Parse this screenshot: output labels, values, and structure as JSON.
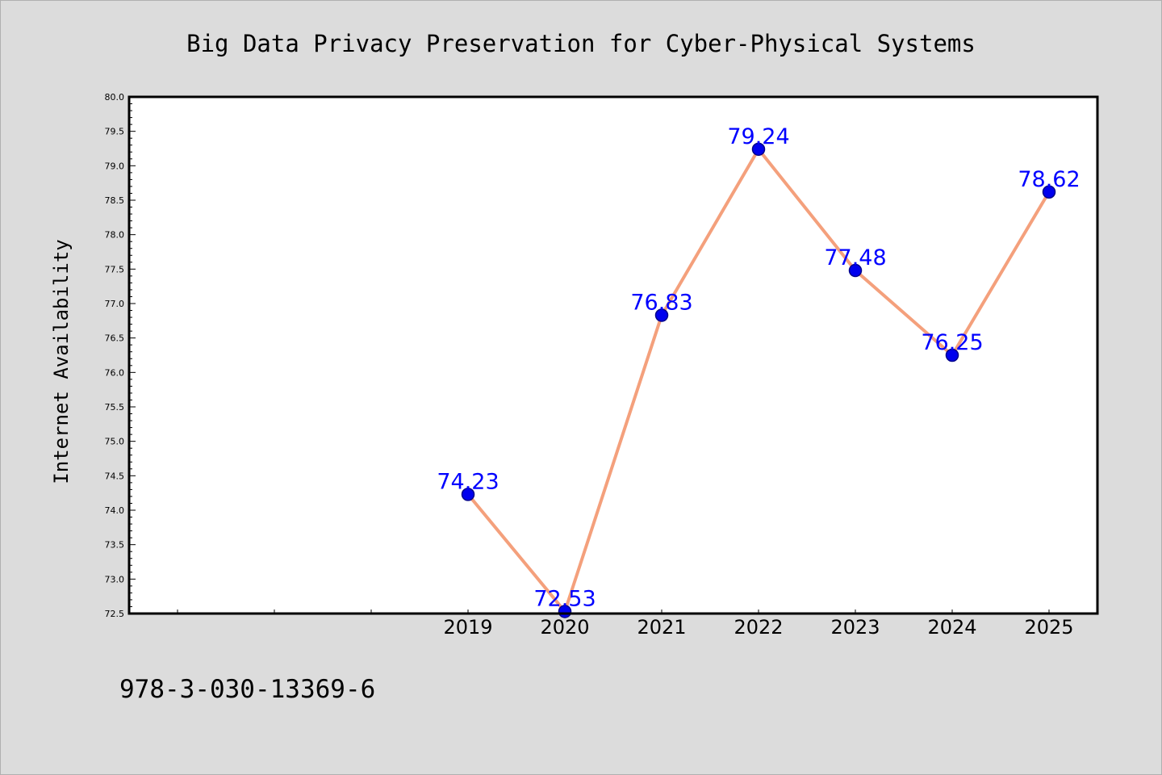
{
  "colors": {
    "background": "#dcdcdc",
    "plot_background": "#ffffff",
    "line": "#f4a07c",
    "marker_fill": "#0000ee",
    "marker_edge": "#00008b",
    "label": "#0000ff"
  },
  "chart_data": {
    "type": "line",
    "title": "Big Data Privacy Preservation for Cyber-Physical Systems",
    "xlabel": "",
    "ylabel": "Internet Availability",
    "categories": [
      "2019",
      "2020",
      "2021",
      "2022",
      "2023",
      "2024",
      "2025"
    ],
    "x_axis_slots": 10,
    "first_category_slot": 3,
    "series": [
      {
        "values": [
          74.23,
          72.53,
          76.83,
          79.24,
          77.48,
          76.25,
          78.62
        ],
        "labels": [
          "74.23",
          "72.53",
          "76.83",
          "79.24",
          "77.48",
          "76.25",
          "78.62"
        ]
      }
    ],
    "ylim": [
      72.5,
      80.0
    ],
    "yticks": [
      "72.5",
      "73.0",
      "73.5",
      "74.0",
      "74.5",
      "75.0",
      "75.5",
      "76.0",
      "76.5",
      "77.0",
      "77.5",
      "78.0",
      "78.5",
      "79.0",
      "79.5",
      "80.0"
    ],
    "grid": false,
    "legend": "none"
  },
  "footer": {
    "isbn": "978-3-030-13369-6"
  }
}
